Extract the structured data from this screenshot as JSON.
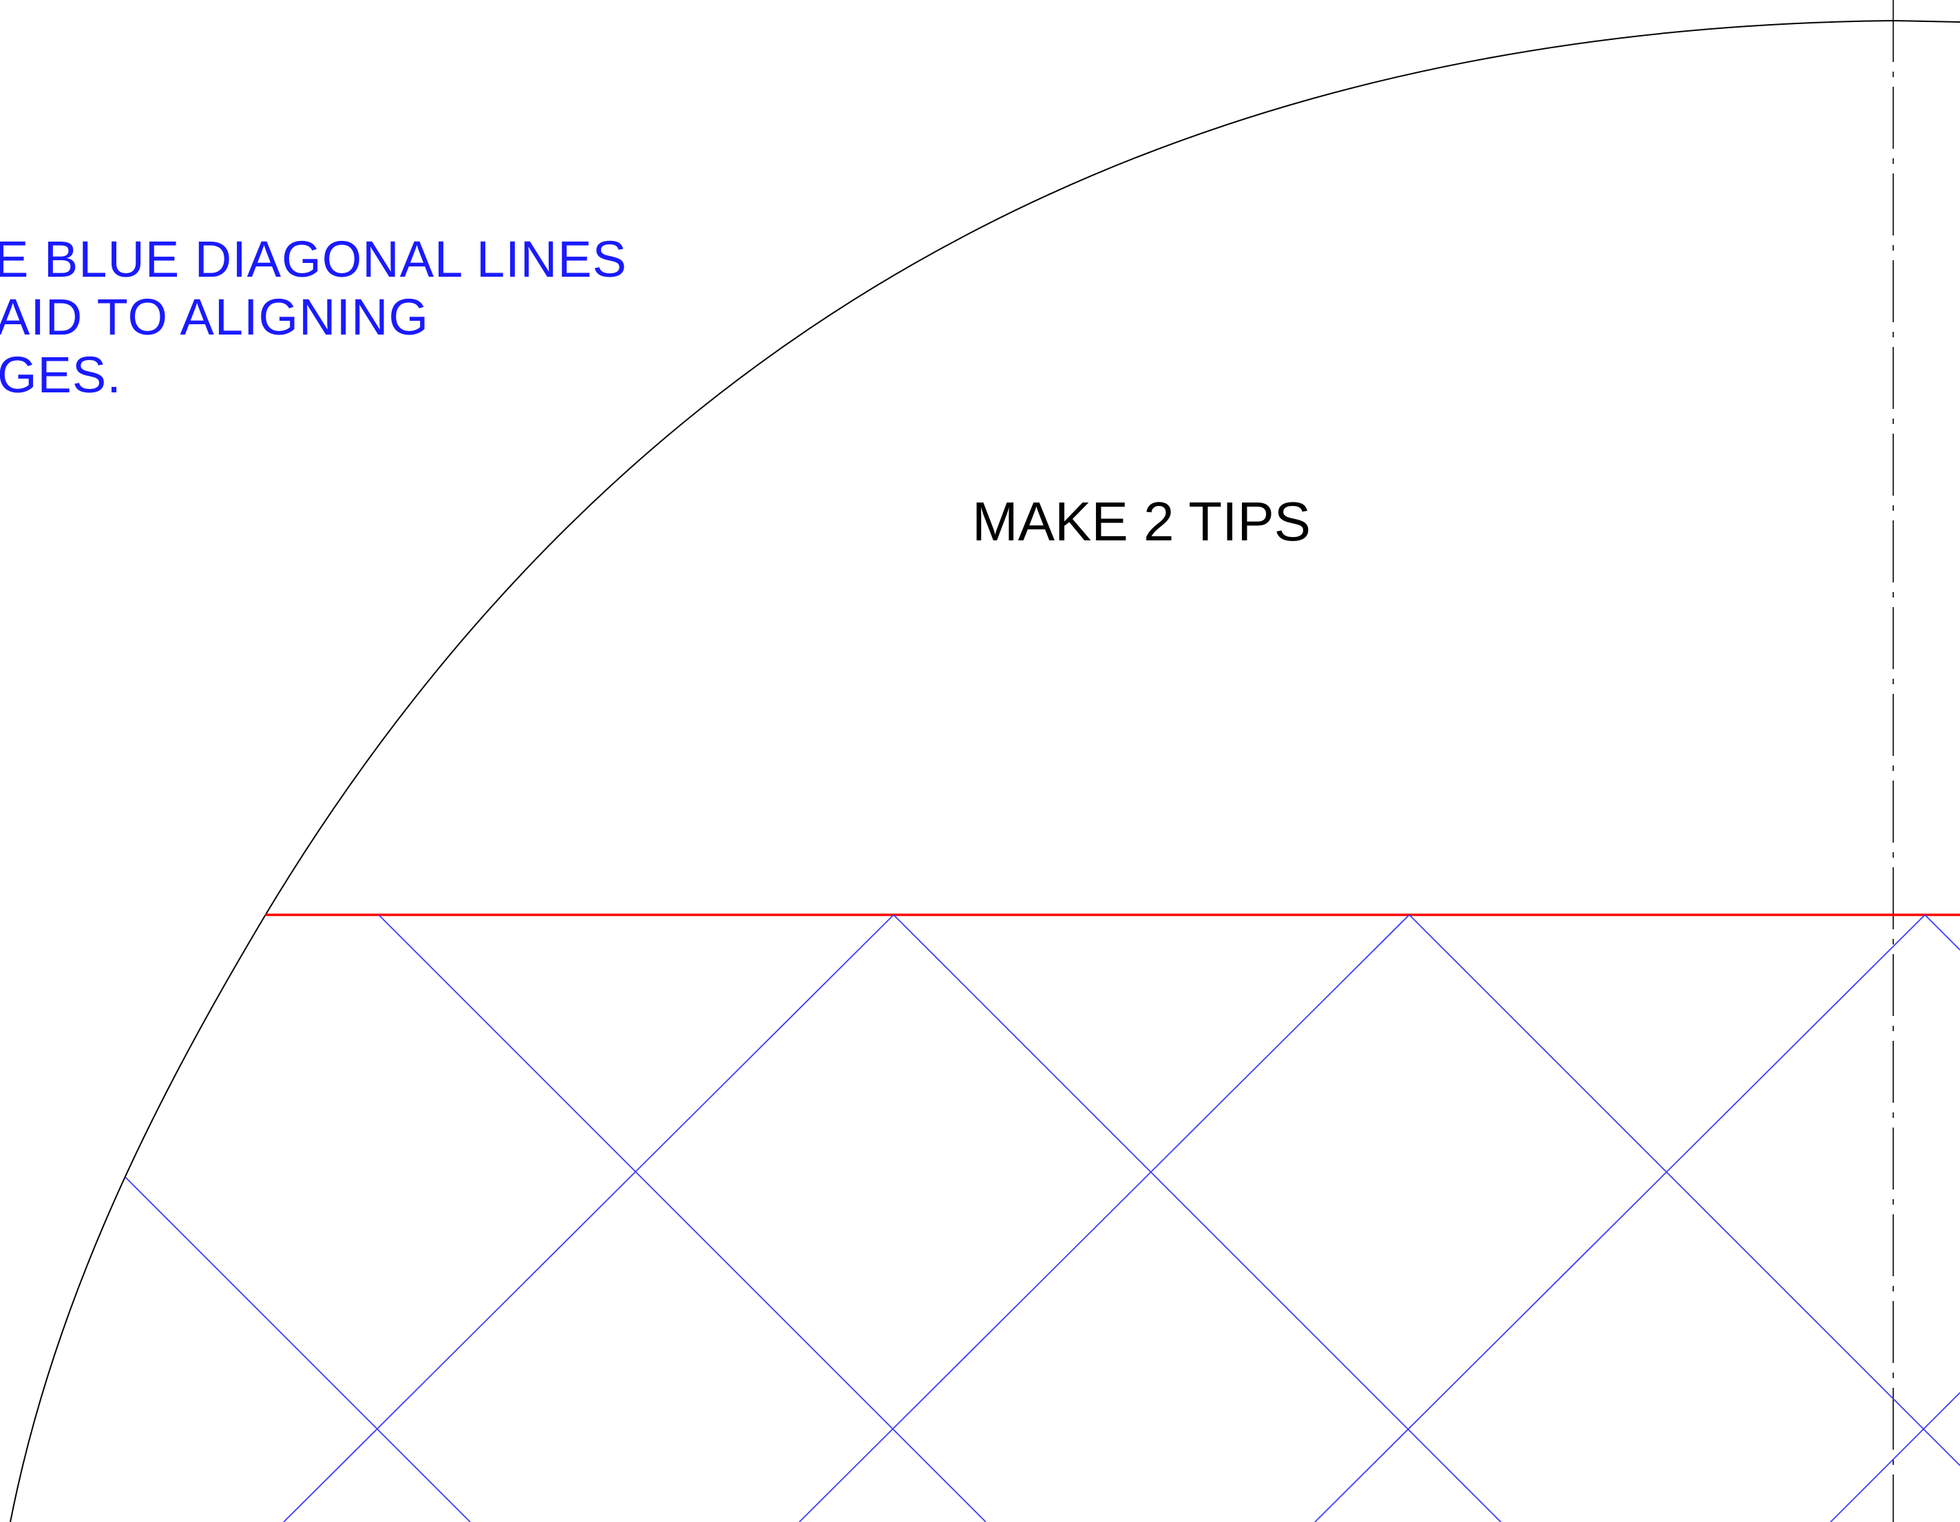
{
  "note": {
    "lines": [
      "E BLUE DIAGONAL LINES",
      "AID TO ALIGNING",
      "GES."
    ]
  },
  "label": {
    "text": "MAKE 2 TIPS"
  },
  "colors": {
    "outline": "#000000",
    "centerline": "#000000",
    "cut_line": "#ff0000",
    "guide_lines": "#3b3bff",
    "note_text": "#1a1aff"
  }
}
